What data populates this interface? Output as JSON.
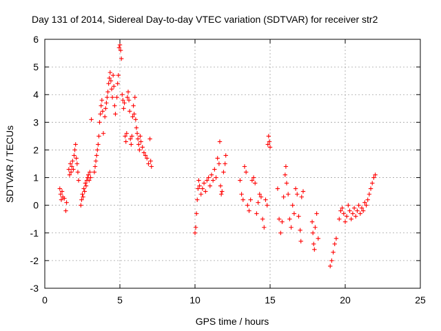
{
  "chart_data": {
    "type": "scatter",
    "title": "Day 131 of 2014, Sidereal Day-to-day VTEC variation (SDTVAR) for receiver str2",
    "xlabel": "GPS time / hours",
    "ylabel": "SDTVAR / TECUs",
    "xlim": [
      0,
      25
    ],
    "ylim": [
      -3,
      6
    ],
    "xticks": [
      0,
      5,
      10,
      15,
      20,
      25
    ],
    "yticks": [
      -3,
      -2,
      -1,
      0,
      1,
      2,
      3,
      4,
      5,
      6
    ],
    "grid": true,
    "marker": "plus",
    "series": [
      {
        "name": "SDTVAR",
        "color": "#ff0000",
        "points": [
          [
            1.0,
            0.6
          ],
          [
            1.05,
            0.4
          ],
          [
            1.1,
            0.2
          ],
          [
            1.15,
            0.5
          ],
          [
            1.2,
            0.3
          ],
          [
            1.3,
            0.25
          ],
          [
            1.4,
            -0.2
          ],
          [
            1.45,
            0.1
          ],
          [
            1.6,
            1.3
          ],
          [
            1.65,
            1.1
          ],
          [
            1.7,
            1.5
          ],
          [
            1.75,
            1.2
          ],
          [
            1.8,
            1.4
          ],
          [
            1.85,
            1.6
          ],
          [
            1.9,
            1.3
          ],
          [
            1.95,
            1.8
          ],
          [
            2.0,
            2.0
          ],
          [
            2.05,
            2.2
          ],
          [
            2.1,
            1.7
          ],
          [
            2.15,
            1.5
          ],
          [
            2.2,
            1.2
          ],
          [
            2.25,
            0.9
          ],
          [
            2.4,
            0.0
          ],
          [
            2.45,
            0.2
          ],
          [
            2.5,
            0.4
          ],
          [
            2.55,
            0.3
          ],
          [
            2.6,
            0.6
          ],
          [
            2.65,
            0.5
          ],
          [
            2.7,
            0.8
          ],
          [
            2.75,
            0.7
          ],
          [
            2.8,
            0.9
          ],
          [
            2.85,
            1.0
          ],
          [
            2.9,
            1.1
          ],
          [
            2.95,
            0.9
          ],
          [
            3.0,
            1.2
          ],
          [
            3.05,
            1.0
          ],
          [
            3.1,
            3.1
          ],
          [
            3.3,
            1.2
          ],
          [
            3.35,
            1.4
          ],
          [
            3.4,
            1.6
          ],
          [
            3.45,
            1.8
          ],
          [
            3.5,
            2.0
          ],
          [
            3.55,
            2.2
          ],
          [
            3.6,
            2.5
          ],
          [
            3.65,
            3.0
          ],
          [
            3.7,
            3.3
          ],
          [
            3.75,
            3.6
          ],
          [
            3.8,
            3.8
          ],
          [
            3.85,
            3.4
          ],
          [
            3.9,
            2.6
          ],
          [
            4.0,
            3.2
          ],
          [
            4.05,
            3.5
          ],
          [
            4.1,
            3.7
          ],
          [
            4.15,
            3.9
          ],
          [
            4.2,
            4.1
          ],
          [
            4.25,
            4.4
          ],
          [
            4.3,
            4.6
          ],
          [
            4.35,
            4.8
          ],
          [
            4.4,
            4.5
          ],
          [
            4.45,
            4.2
          ],
          [
            4.5,
            3.9
          ],
          [
            4.55,
            4.7
          ],
          [
            4.6,
            4.3
          ],
          [
            4.65,
            3.6
          ],
          [
            4.7,
            3.3
          ],
          [
            4.8,
            3.9
          ],
          [
            4.85,
            4.4
          ],
          [
            4.9,
            4.7
          ],
          [
            4.95,
            5.7
          ],
          [
            5.0,
            5.8
          ],
          [
            5.05,
            5.6
          ],
          [
            5.1,
            5.3
          ],
          [
            5.15,
            4.0
          ],
          [
            5.2,
            3.8
          ],
          [
            5.25,
            3.5
          ],
          [
            5.3,
            3.7
          ],
          [
            5.35,
            2.5
          ],
          [
            5.4,
            2.3
          ],
          [
            5.45,
            2.6
          ],
          [
            5.5,
            3.9
          ],
          [
            5.55,
            4.1
          ],
          [
            5.6,
            3.8
          ],
          [
            5.65,
            3.4
          ],
          [
            5.7,
            2.4
          ],
          [
            5.75,
            2.2
          ],
          [
            5.8,
            2.5
          ],
          [
            5.85,
            3.2
          ],
          [
            5.9,
            3.6
          ],
          [
            5.95,
            3.3
          ],
          [
            6.0,
            3.9
          ],
          [
            6.05,
            3.1
          ],
          [
            6.1,
            2.8
          ],
          [
            6.15,
            2.6
          ],
          [
            6.2,
            2.4
          ],
          [
            6.25,
            2.2
          ],
          [
            6.3,
            2.0
          ],
          [
            6.35,
            2.5
          ],
          [
            6.4,
            2.3
          ],
          [
            6.5,
            2.1
          ],
          [
            6.6,
            1.9
          ],
          [
            6.7,
            1.8
          ],
          [
            6.8,
            1.7
          ],
          [
            6.9,
            1.5
          ],
          [
            7.0,
            2.4
          ],
          [
            7.05,
            1.6
          ],
          [
            7.1,
            1.4
          ],
          [
            10.0,
            -1.0
          ],
          [
            10.05,
            -0.8
          ],
          [
            10.1,
            -0.3
          ],
          [
            10.15,
            0.2
          ],
          [
            10.2,
            0.6
          ],
          [
            10.25,
            0.9
          ],
          [
            10.3,
            0.7
          ],
          [
            10.4,
            0.4
          ],
          [
            10.5,
            0.6
          ],
          [
            10.6,
            0.8
          ],
          [
            10.7,
            0.5
          ],
          [
            10.8,
            0.9
          ],
          [
            10.9,
            1.0
          ],
          [
            11.0,
            0.7
          ],
          [
            11.1,
            1.1
          ],
          [
            11.2,
            0.9
          ],
          [
            11.3,
            1.3
          ],
          [
            11.4,
            1.0
          ],
          [
            11.5,
            1.7
          ],
          [
            11.6,
            1.5
          ],
          [
            11.65,
            2.3
          ],
          [
            11.7,
            0.7
          ],
          [
            11.75,
            0.4
          ],
          [
            11.8,
            0.5
          ],
          [
            11.9,
            1.2
          ],
          [
            12.0,
            1.5
          ],
          [
            12.05,
            1.8
          ],
          [
            13.0,
            0.9
          ],
          [
            13.1,
            0.4
          ],
          [
            13.2,
            0.2
          ],
          [
            13.3,
            1.4
          ],
          [
            13.4,
            1.2
          ],
          [
            13.5,
            0.0
          ],
          [
            13.6,
            -0.2
          ],
          [
            13.7,
            0.2
          ],
          [
            13.8,
            0.9
          ],
          [
            13.9,
            1.0
          ],
          [
            14.0,
            0.8
          ],
          [
            14.1,
            -0.3
          ],
          [
            14.2,
            0.1
          ],
          [
            14.3,
            0.4
          ],
          [
            14.4,
            0.3
          ],
          [
            14.5,
            -0.5
          ],
          [
            14.6,
            -0.8
          ],
          [
            14.7,
            0.2
          ],
          [
            14.8,
            0.0
          ],
          [
            14.85,
            2.2
          ],
          [
            14.9,
            2.5
          ],
          [
            14.95,
            2.3
          ],
          [
            15.0,
            2.1
          ],
          [
            15.5,
            0.6
          ],
          [
            15.6,
            -0.5
          ],
          [
            15.7,
            -1.0
          ],
          [
            15.8,
            -0.6
          ],
          [
            15.9,
            0.3
          ],
          [
            16.0,
            1.1
          ],
          [
            16.05,
            1.4
          ],
          [
            16.1,
            0.8
          ],
          [
            16.2,
            0.4
          ],
          [
            16.3,
            -0.5
          ],
          [
            16.4,
            -0.8
          ],
          [
            16.5,
            0.0
          ],
          [
            16.6,
            -0.3
          ],
          [
            16.7,
            0.6
          ],
          [
            16.8,
            0.4
          ],
          [
            16.9,
            -0.4
          ],
          [
            17.0,
            -0.9
          ],
          [
            17.05,
            -1.3
          ],
          [
            17.1,
            0.3
          ],
          [
            17.2,
            0.5
          ],
          [
            17.8,
            -0.6
          ],
          [
            17.85,
            -1.0
          ],
          [
            17.9,
            -1.4
          ],
          [
            17.95,
            -1.6
          ],
          [
            18.0,
            -0.8
          ],
          [
            18.1,
            -0.3
          ],
          [
            18.2,
            -1.2
          ],
          [
            19.0,
            -2.2
          ],
          [
            19.1,
            -2.0
          ],
          [
            19.2,
            -1.7
          ],
          [
            19.3,
            -1.4
          ],
          [
            19.4,
            -1.2
          ],
          [
            19.6,
            -0.5
          ],
          [
            19.7,
            -0.2
          ],
          [
            19.8,
            -0.1
          ],
          [
            19.9,
            -0.3
          ],
          [
            20.0,
            -0.6
          ],
          [
            20.1,
            -0.4
          ],
          [
            20.2,
            0.0
          ],
          [
            20.3,
            -0.2
          ],
          [
            20.4,
            -0.5
          ],
          [
            20.5,
            -0.3
          ],
          [
            20.6,
            -0.1
          ],
          [
            20.7,
            -0.4
          ],
          [
            20.8,
            -0.2
          ],
          [
            20.9,
            0.0
          ],
          [
            21.0,
            -0.3
          ],
          [
            21.1,
            -0.1
          ],
          [
            21.2,
            -0.2
          ],
          [
            21.3,
            0.1
          ],
          [
            21.4,
            0.0
          ],
          [
            21.5,
            0.2
          ],
          [
            21.6,
            0.4
          ],
          [
            21.7,
            0.6
          ],
          [
            21.8,
            0.8
          ],
          [
            21.9,
            1.0
          ],
          [
            22.0,
            1.1
          ]
        ]
      }
    ]
  }
}
